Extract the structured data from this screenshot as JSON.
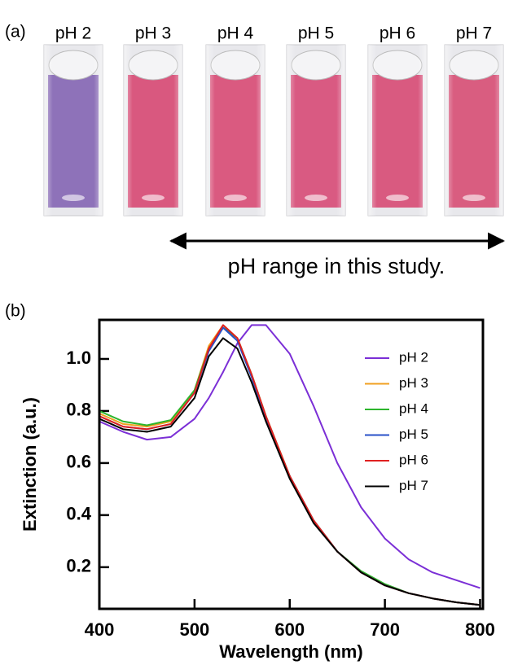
{
  "panel_a": {
    "label": "(a)",
    "cuvettes": [
      {
        "label": "pH 2",
        "color": "#8e72b9"
      },
      {
        "label": "pH 3",
        "color": "#d9587f"
      },
      {
        "label": "pH 4",
        "color": "#da5a80"
      },
      {
        "label": "pH 5",
        "color": "#d95a82"
      },
      {
        "label": "pH 6",
        "color": "#d95a80"
      },
      {
        "label": "pH 7",
        "color": "#d95d80"
      }
    ],
    "range_note": "pH range in this study."
  },
  "panel_b_label": "(b)",
  "chart_data": {
    "type": "line",
    "xlabel": "Wavelength (nm)",
    "ylabel": "Extinction (a.u.)",
    "x": [
      400,
      425,
      450,
      475,
      500,
      515,
      530,
      545,
      560,
      575,
      600,
      625,
      650,
      675,
      700,
      725,
      750,
      775,
      800
    ],
    "series": [
      {
        "name": "pH 2",
        "color": "#7b2fd6",
        "values": [
          0.76,
          0.72,
          0.69,
          0.7,
          0.77,
          0.85,
          0.95,
          1.06,
          1.13,
          1.13,
          1.02,
          0.82,
          0.6,
          0.43,
          0.31,
          0.23,
          0.18,
          0.15,
          0.12
        ]
      },
      {
        "name": "pH 3",
        "color": "#f0a020",
        "values": [
          0.79,
          0.75,
          0.74,
          0.76,
          0.88,
          1.05,
          1.13,
          1.08,
          0.94,
          0.78,
          0.55,
          0.38,
          0.26,
          0.18,
          0.13,
          0.1,
          0.08,
          0.065,
          0.055
        ]
      },
      {
        "name": "pH 4",
        "color": "#2cb52c",
        "values": [
          0.8,
          0.76,
          0.745,
          0.765,
          0.88,
          1.04,
          1.12,
          1.08,
          0.94,
          0.78,
          0.55,
          0.38,
          0.26,
          0.185,
          0.135,
          0.1,
          0.08,
          0.065,
          0.055
        ]
      },
      {
        "name": "pH 5",
        "color": "#2850c8",
        "values": [
          0.78,
          0.74,
          0.73,
          0.75,
          0.87,
          1.03,
          1.12,
          1.07,
          0.93,
          0.77,
          0.55,
          0.38,
          0.26,
          0.18,
          0.13,
          0.1,
          0.08,
          0.065,
          0.055
        ]
      },
      {
        "name": "pH 6",
        "color": "#e02020",
        "values": [
          0.78,
          0.74,
          0.73,
          0.75,
          0.87,
          1.04,
          1.13,
          1.08,
          0.94,
          0.78,
          0.55,
          0.38,
          0.26,
          0.18,
          0.13,
          0.1,
          0.08,
          0.065,
          0.055
        ]
      },
      {
        "name": "pH 7",
        "color": "#000000",
        "values": [
          0.77,
          0.73,
          0.72,
          0.74,
          0.85,
          1.01,
          1.08,
          1.04,
          0.91,
          0.76,
          0.54,
          0.37,
          0.26,
          0.18,
          0.13,
          0.1,
          0.08,
          0.065,
          0.055
        ]
      }
    ],
    "xlim": [
      400,
      803
    ],
    "ylim": [
      0.04,
      1.15
    ],
    "xticks": [
      400,
      500,
      600,
      700,
      800
    ],
    "yticks": [
      0.2,
      0.4,
      0.6,
      0.8,
      {
        "value": 1.0,
        "label": "1.0"
      }
    ],
    "legend": "upper right"
  }
}
